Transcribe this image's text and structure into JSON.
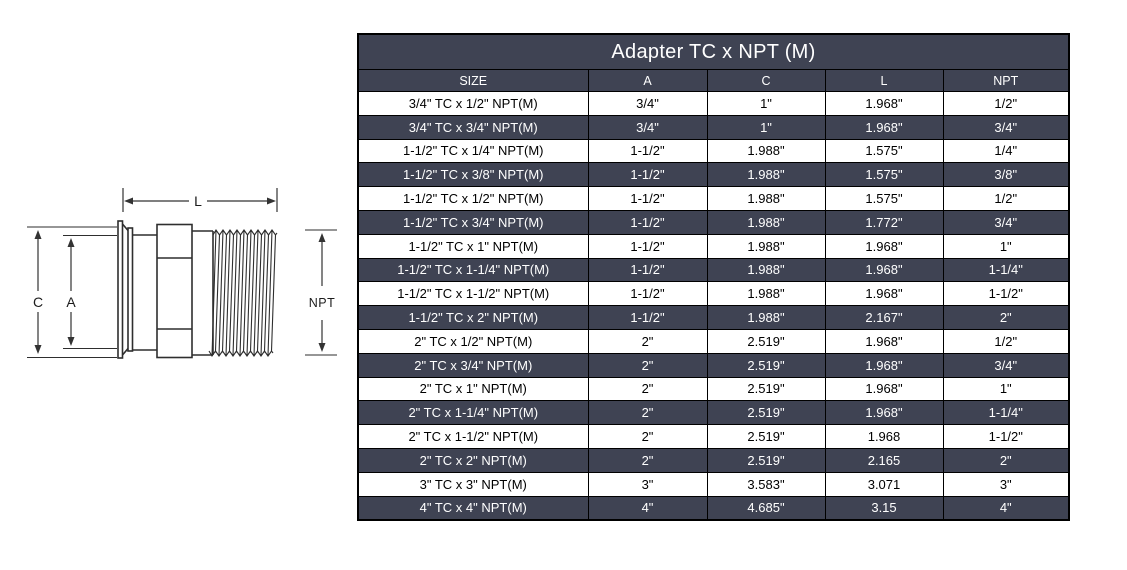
{
  "diagram": {
    "description": "Line drawing of a sanitary adapter: tri-clamp ferrule on left, hex body in middle, male NPT threads on right, with dimension callouts",
    "labels": {
      "l": "L",
      "c": "C",
      "a": "A",
      "npt": "NPT"
    }
  },
  "table": {
    "title": "Adapter TC x NPT (M)",
    "columns": [
      "SIZE",
      "A",
      "C",
      "L",
      "NPT"
    ],
    "rows": [
      {
        "size": "3/4\" TC x 1/2\" NPT(M)",
        "a": "3/4\"",
        "c": "1\"",
        "l": "1.968\"",
        "npt": "1/2\""
      },
      {
        "size": "3/4\" TC x 3/4\" NPT(M)",
        "a": "3/4\"",
        "c": "1\"",
        "l": "1.968\"",
        "npt": "3/4\""
      },
      {
        "size": "1-1/2\" TC x 1/4\" NPT(M)",
        "a": "1-1/2\"",
        "c": "1.988\"",
        "l": "1.575\"",
        "npt": "1/4\""
      },
      {
        "size": "1-1/2\" TC x 3/8\" NPT(M)",
        "a": "1-1/2\"",
        "c": "1.988\"",
        "l": "1.575\"",
        "npt": "3/8\""
      },
      {
        "size": "1-1/2\" TC x 1/2\" NPT(M)",
        "a": "1-1/2\"",
        "c": "1.988\"",
        "l": "1.575\"",
        "npt": "1/2\""
      },
      {
        "size": "1-1/2\" TC x 3/4\" NPT(M)",
        "a": "1-1/2\"",
        "c": "1.988\"",
        "l": "1.772\"",
        "npt": "3/4\""
      },
      {
        "size": "1-1/2\" TC x 1\" NPT(M)",
        "a": "1-1/2\"",
        "c": "1.988\"",
        "l": "1.968\"",
        "npt": "1\""
      },
      {
        "size": "1-1/2\" TC x 1-1/4\" NPT(M)",
        "a": "1-1/2\"",
        "c": "1.988\"",
        "l": "1.968\"",
        "npt": "1-1/4\""
      },
      {
        "size": "1-1/2\" TC x 1-1/2\" NPT(M)",
        "a": "1-1/2\"",
        "c": "1.988\"",
        "l": "1.968\"",
        "npt": "1-1/2\""
      },
      {
        "size": "1-1/2\" TC x 2\" NPT(M)",
        "a": "1-1/2\"",
        "c": "1.988\"",
        "l": "2.167\"",
        "npt": "2\""
      },
      {
        "size": "2\" TC x 1/2\" NPT(M)",
        "a": "2\"",
        "c": "2.519\"",
        "l": "1.968\"",
        "npt": "1/2\""
      },
      {
        "size": "2\" TC x 3/4\" NPT(M)",
        "a": "2\"",
        "c": "2.519\"",
        "l": "1.968\"",
        "npt": "3/4\""
      },
      {
        "size": "2\" TC x 1\" NPT(M)",
        "a": "2\"",
        "c": "2.519\"",
        "l": "1.968\"",
        "npt": "1\""
      },
      {
        "size": "2\" TC x 1-1/4\" NPT(M)",
        "a": "2\"",
        "c": "2.519\"",
        "l": "1.968\"",
        "npt": "1-1/4\""
      },
      {
        "size": "2\" TC x 1-1/2\" NPT(M)",
        "a": "2\"",
        "c": "2.519\"",
        "l": "1.968",
        "npt": "1-1/2\""
      },
      {
        "size": "2\" TC x 2\" NPT(M)",
        "a": "2\"",
        "c": "2.519\"",
        "l": "2.165",
        "npt": "2\""
      },
      {
        "size": "3\" TC x 3\" NPT(M)",
        "a": "3\"",
        "c": "3.583\"",
        "l": "3.071",
        "npt": "3\""
      },
      {
        "size": "4\" TC x 4\" NPT(M)",
        "a": "4\"",
        "c": "4.685\"",
        "l": "3.15",
        "npt": "4\""
      }
    ],
    "colors": {
      "dark_row_bg": "#3f4353",
      "light_row_bg": "#ffffff",
      "header_text": "#ffffff",
      "body_text": "#000000",
      "border": "#000000"
    }
  }
}
